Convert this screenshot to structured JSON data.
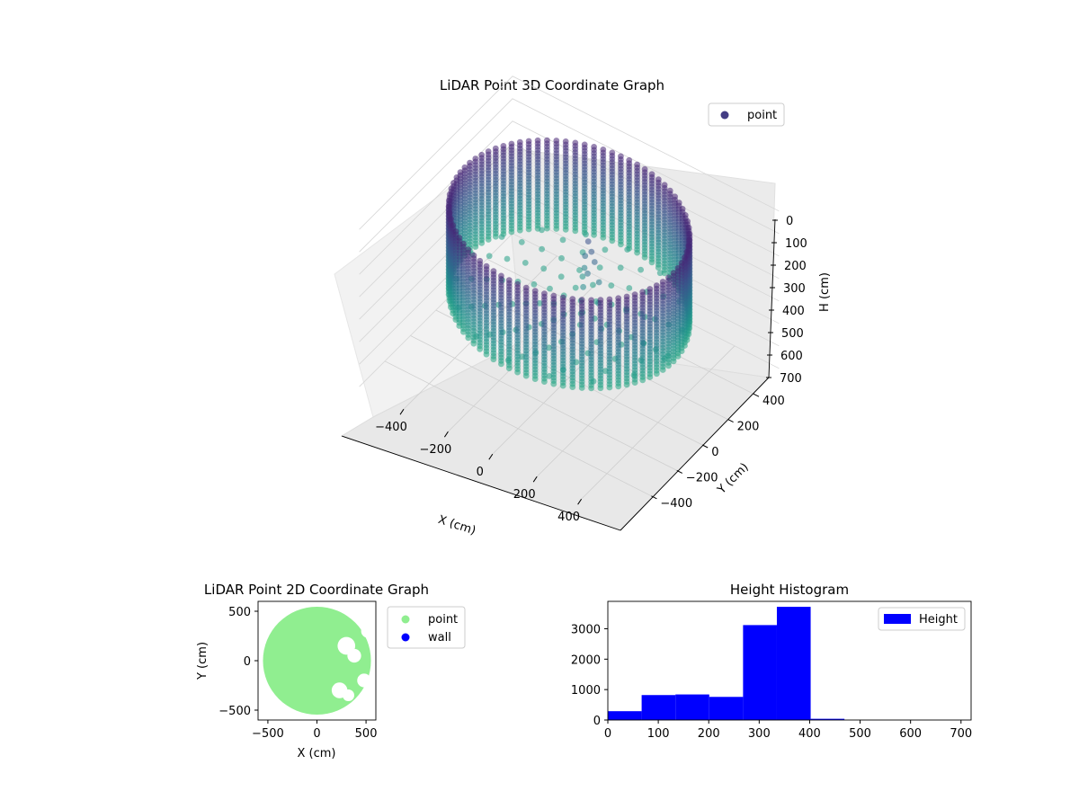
{
  "figure": {
    "background": "#ffffff"
  },
  "chart_data": [
    {
      "id": "lidar3d",
      "type": "scatter",
      "title": "LiDAR Point 3D Coordinate Graph",
      "xlabel": "X (cm)",
      "ylabel": "Y (cm)",
      "zlabel": "H (cm)",
      "xlim": [
        -600,
        600
      ],
      "ylim": [
        -600,
        600
      ],
      "zlim": [
        0,
        700
      ],
      "z_inverted": true,
      "xticks": [
        -400,
        -200,
        0,
        200,
        400
      ],
      "yticks": [
        -400,
        -200,
        0,
        200,
        400
      ],
      "zticks": [
        0,
        100,
        200,
        300,
        400,
        500,
        600,
        700
      ],
      "xtick_labels": [
        "−400",
        "−200",
        "0",
        "200",
        "400"
      ],
      "ytick_labels": [
        "−400",
        "−200",
        "0",
        "200",
        "400"
      ],
      "ztick_labels": [
        "0",
        "100",
        "200",
        "300",
        "400",
        "500",
        "600",
        "700"
      ],
      "grid": true,
      "legend": {
        "position": "top-right",
        "entries": [
          {
            "label": "point",
            "color": "#433d84"
          }
        ]
      },
      "colormap": "viridis",
      "series": [
        {
          "name": "point",
          "wall_ring": {
            "radius": 470,
            "height_range": [
              0,
              400
            ]
          },
          "floor_fill": {
            "radius": 450,
            "height": 380
          },
          "object_cluster": [
            {
              "x": 40,
              "y": 80,
              "h": 120
            },
            {
              "x": 60,
              "y": 70,
              "h": 150
            },
            {
              "x": 80,
              "y": 60,
              "h": 180
            },
            {
              "x": 20,
              "y": 90,
              "h": 200
            },
            {
              "x": 60,
              "y": 40,
              "h": 230
            },
            {
              "x": 100,
              "y": 60,
              "h": 260
            },
            {
              "x": 0,
              "y": 120,
              "h": 280
            },
            {
              "x": 40,
              "y": 40,
              "h": 300
            },
            {
              "x": 120,
              "y": 20,
              "h": 320
            },
            {
              "x": -20,
              "y": 140,
              "h": 340
            },
            {
              "x": 200,
              "y": 100,
              "h": 360
            },
            {
              "x": 260,
              "y": 140,
              "h": 380
            }
          ]
        }
      ]
    },
    {
      "id": "lidar2d",
      "type": "scatter",
      "title": "LiDAR Point 2D Coordinate Graph",
      "xlabel": "X (cm)",
      "ylabel": "Y (cm)",
      "xlim": [
        -600,
        600
      ],
      "ylim": [
        -600,
        600
      ],
      "xticks": [
        -500,
        0,
        500
      ],
      "yticks": [
        -500,
        0,
        500
      ],
      "xtick_labels": [
        "−500",
        "0",
        "500"
      ],
      "ytick_labels": [
        "−500",
        "0",
        "500"
      ],
      "legend": {
        "position": "outside-right",
        "entries": [
          {
            "label": "point",
            "color": "#90ee90"
          },
          {
            "label": "wall",
            "color": "#0000ff"
          }
        ]
      },
      "series": [
        {
          "name": "point",
          "shape": "disk",
          "radius": 550,
          "notches": [
            {
              "x": 300,
              "y": 150,
              "r": 90
            },
            {
              "x": 380,
              "y": 50,
              "r": 70
            },
            {
              "x": 230,
              "y": -300,
              "r": 80
            },
            {
              "x": 320,
              "y": -350,
              "r": 60
            },
            {
              "x": 480,
              "y": -200,
              "r": 70
            },
            {
              "x": 520,
              "y": 300,
              "r": 70
            }
          ]
        },
        {
          "name": "wall",
          "points": []
        }
      ]
    },
    {
      "id": "histogram",
      "type": "bar",
      "title": "Height Histogram",
      "xlabel": "",
      "ylabel": "",
      "xlim": [
        0,
        720
      ],
      "ylim": [
        0,
        3900
      ],
      "xticks": [
        0,
        100,
        200,
        300,
        400,
        500,
        600,
        700
      ],
      "yticks": [
        0,
        1000,
        2000,
        3000
      ],
      "xtick_labels": [
        "0",
        "100",
        "200",
        "300",
        "400",
        "500",
        "600",
        "700"
      ],
      "ytick_labels": [
        "0",
        "1000",
        "2000",
        "3000"
      ],
      "legend": {
        "position": "top-right",
        "entries": [
          {
            "label": "Height",
            "color": "#0000ff"
          }
        ]
      },
      "color": "#0000ff",
      "bin_edges": [
        0,
        67,
        134,
        201,
        268,
        335,
        402,
        469,
        536,
        603,
        670
      ],
      "values": [
        290,
        820,
        840,
        760,
        3120,
        3720,
        40,
        0,
        0,
        0
      ]
    }
  ]
}
